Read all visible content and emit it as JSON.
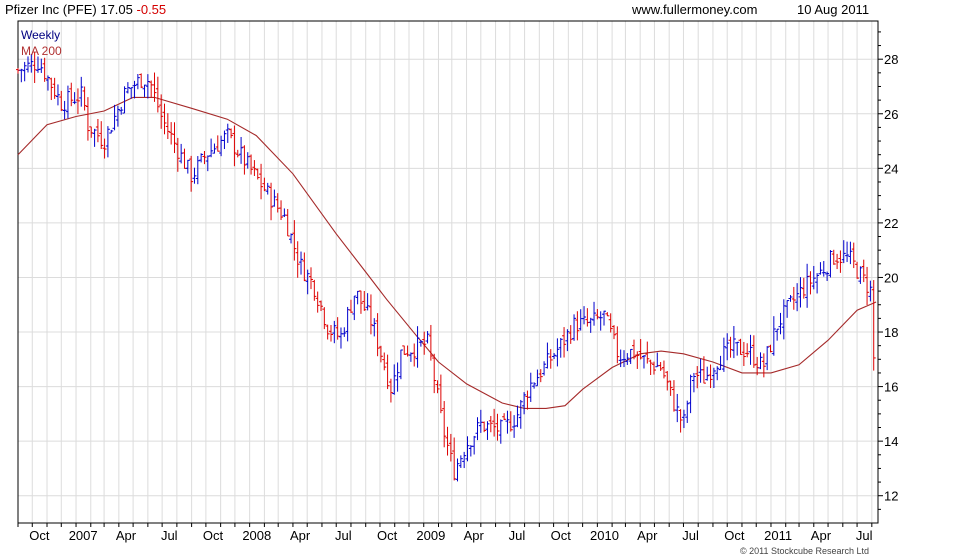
{
  "header": {
    "stock": "Pfizer Inc (PFE) 17.05",
    "change": "-0.55",
    "site": "www.fullermoney.com",
    "date": "10 Aug 2011"
  },
  "legend": {
    "weekly": "Weekly",
    "ma": "MA 200"
  },
  "copyright": "© 2011 Stockcube Research Ltd",
  "colors": {
    "up": "#0000cc",
    "down": "#dd0000",
    "ma": "#a52a2a",
    "grid": "#dcdcdc",
    "axis": "#000000"
  },
  "chart_data": {
    "type": "line",
    "ylim": [
      11,
      29.4
    ],
    "y_ticks": [
      12,
      14,
      16,
      18,
      20,
      22,
      24,
      26,
      28
    ],
    "x_months": [
      "Oct",
      "2007",
      "Apr",
      "Jul",
      "Oct",
      "2008",
      "Apr",
      "Jul",
      "Oct",
      "2009",
      "Apr",
      "Jul",
      "Oct",
      "2010",
      "Apr",
      "Jul",
      "Oct",
      "2011",
      "Apr",
      "Jul"
    ],
    "x_range": [
      "2006-09-01",
      "2011-08-14"
    ],
    "grid": true,
    "series": [
      {
        "name": "Weekly",
        "kind": "price",
        "x": [
          "2006-09-01",
          "2006-10-15",
          "2006-12-01",
          "2007-01-15",
          "2007-01-25",
          "2007-03-01",
          "2007-04-15",
          "2007-05-20",
          "2007-06-05",
          "2007-07-01",
          "2007-09-01",
          "2007-10-01",
          "2007-11-15",
          "2008-01-01",
          "2008-02-15",
          "2008-03-15",
          "2008-04-15",
          "2008-05-15",
          "2008-06-15",
          "2008-07-10",
          "2008-08-10",
          "2008-09-15",
          "2008-10-10",
          "2008-10-25",
          "2008-11-15",
          "2008-12-10",
          "2009-01-10",
          "2009-02-10",
          "2009-03-05",
          "2009-04-01",
          "2009-05-01",
          "2009-06-15",
          "2009-07-15",
          "2009-08-10",
          "2009-09-15",
          "2009-10-15",
          "2009-11-15",
          "2009-12-15",
          "2010-01-15",
          "2010-02-15",
          "2010-03-15",
          "2010-04-15",
          "2010-05-15",
          "2010-06-15",
          "2010-07-01",
          "2010-07-20",
          "2010-08-15",
          "2010-09-15",
          "2010-10-15",
          "2010-11-15",
          "2010-12-15",
          "2011-01-15",
          "2011-02-15",
          "2011-03-15",
          "2011-04-15",
          "2011-05-15",
          "2011-06-15",
          "2011-07-15",
          "2011-07-30",
          "2011-08-10"
        ],
        "y": [
          27.6,
          27.9,
          26.4,
          26.7,
          25.6,
          25.0,
          26.8,
          27.3,
          27.2,
          25.8,
          23.7,
          24.5,
          25.2,
          24.0,
          22.9,
          22.2,
          20.5,
          19.7,
          18.1,
          17.8,
          19.5,
          18.3,
          16.8,
          15.9,
          17.3,
          17.4,
          17.6,
          14.5,
          12.9,
          13.9,
          14.6,
          14.4,
          14.9,
          16.0,
          16.8,
          17.5,
          18.3,
          18.3,
          18.6,
          17.1,
          17.3,
          16.9,
          16.7,
          15.2,
          14.6,
          16.5,
          16.3,
          17.1,
          17.4,
          17.3,
          16.7,
          18.3,
          19.1,
          19.7,
          20.2,
          20.8,
          20.7,
          19.9,
          19.5,
          17.05
        ]
      },
      {
        "name": "MA 200",
        "kind": "line",
        "x": [
          "2006-09-01",
          "2006-11-01",
          "2007-01-01",
          "2007-03-01",
          "2007-05-01",
          "2007-06-15",
          "2007-09-01",
          "2007-11-15",
          "2008-01-15",
          "2008-04-01",
          "2008-07-01",
          "2008-09-01",
          "2008-10-15",
          "2008-12-15",
          "2009-02-01",
          "2009-04-01",
          "2009-06-15",
          "2009-08-01",
          "2009-09-15",
          "2009-10-25",
          "2009-12-01",
          "2010-02-01",
          "2010-04-01",
          "2010-05-15",
          "2010-07-01",
          "2010-09-01",
          "2010-11-01",
          "2011-01-01",
          "2011-03-01",
          "2011-05-01",
          "2011-07-01",
          "2011-08-10"
        ],
        "y": [
          24.5,
          25.6,
          25.9,
          26.1,
          26.6,
          26.6,
          26.2,
          25.8,
          25.2,
          23.8,
          21.6,
          20.2,
          19.2,
          17.9,
          16.9,
          16.1,
          15.4,
          15.2,
          15.2,
          15.3,
          15.9,
          16.7,
          17.2,
          17.3,
          17.2,
          16.9,
          16.5,
          16.5,
          16.8,
          17.7,
          18.8,
          19.1
        ]
      }
    ]
  }
}
